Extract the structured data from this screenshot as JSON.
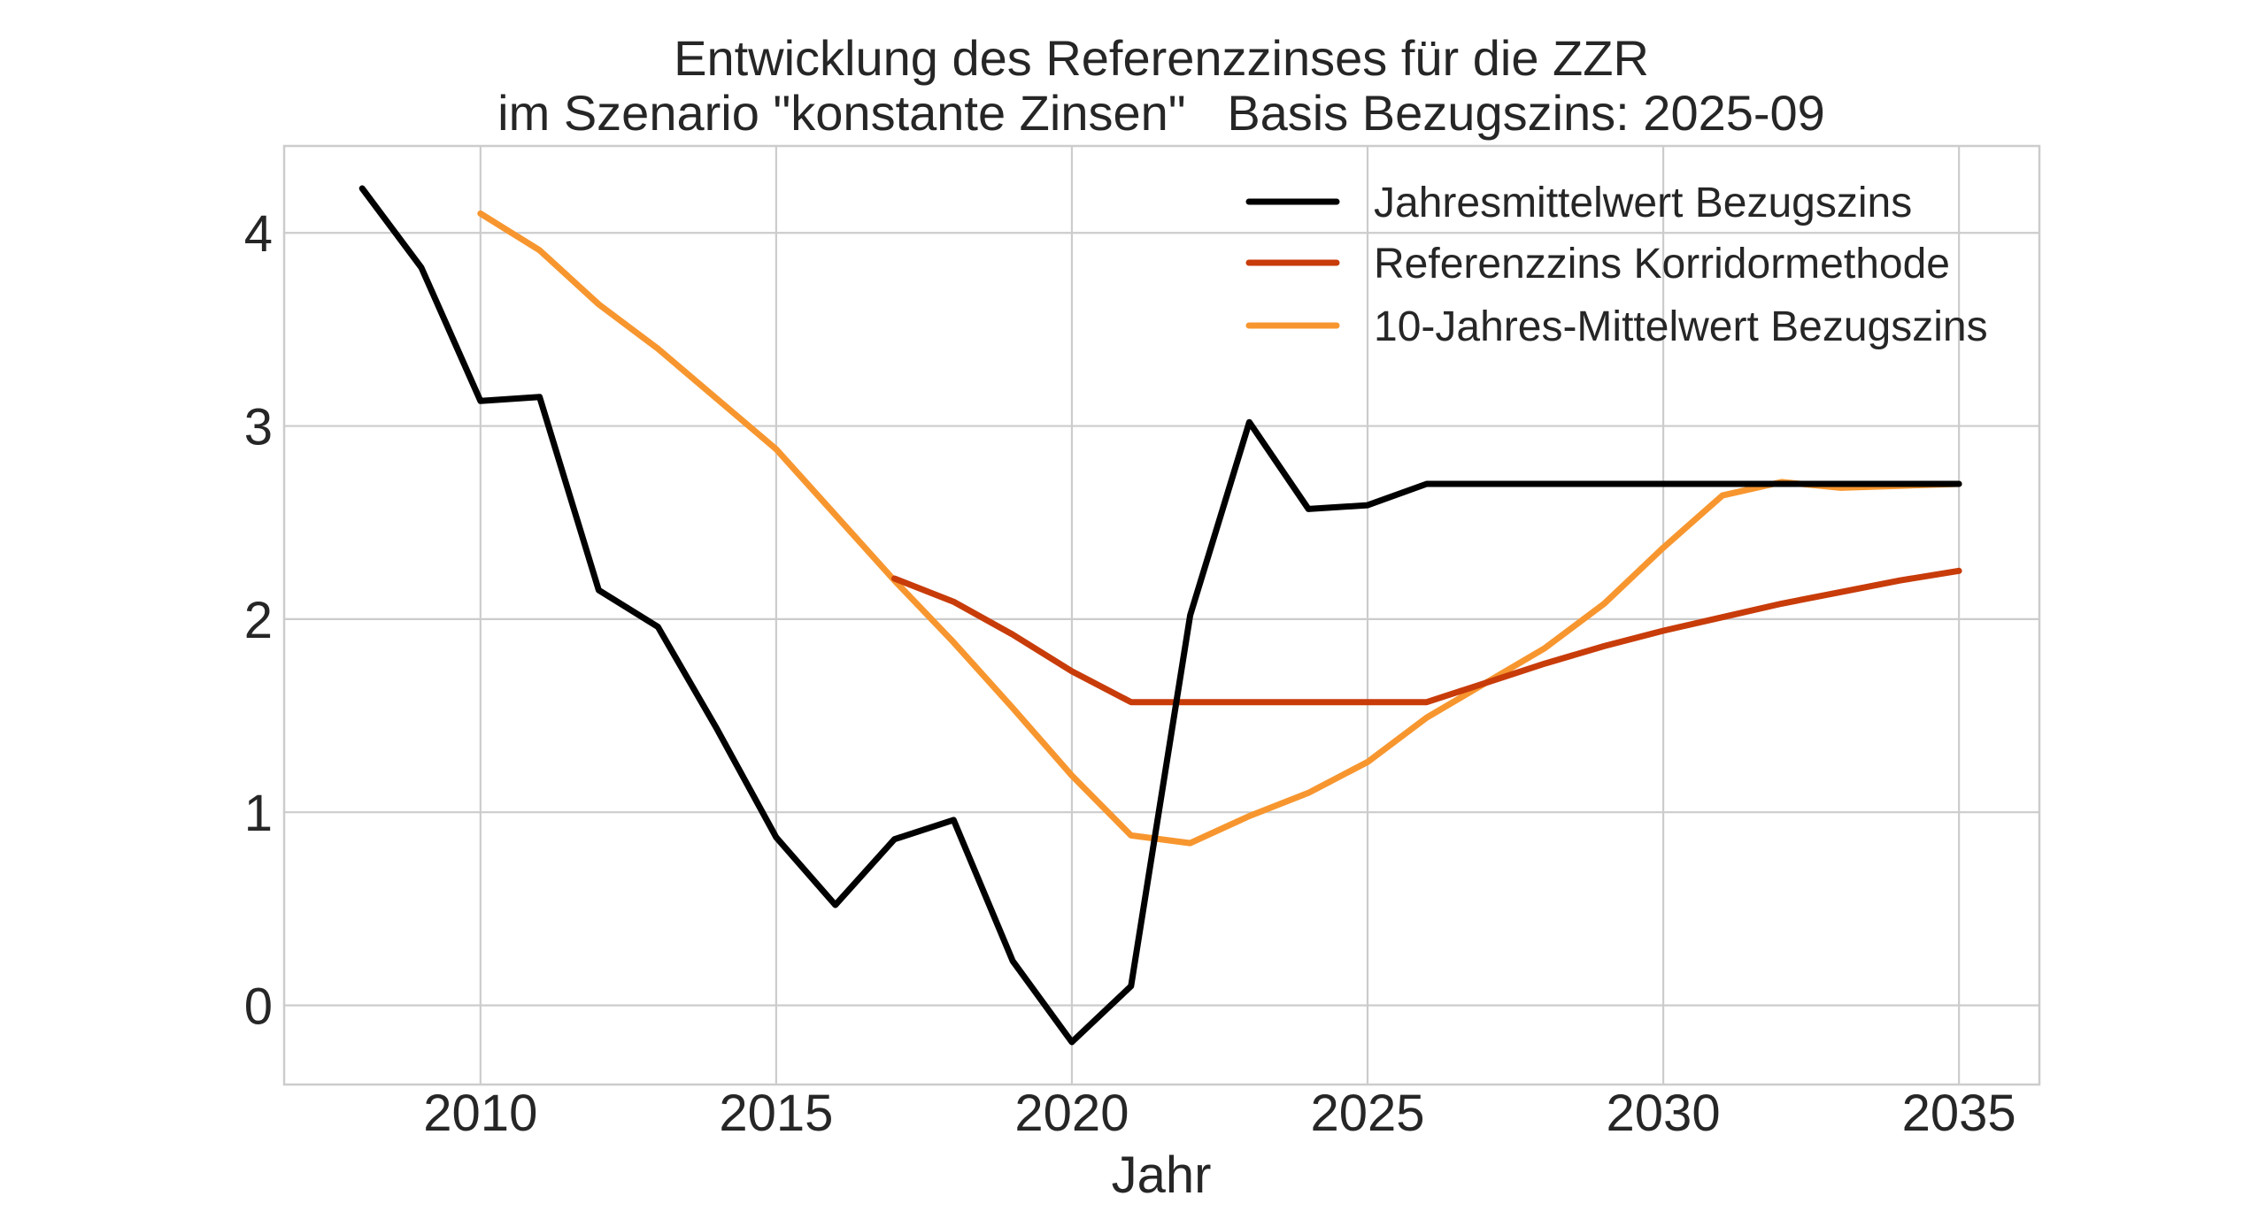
{
  "chart_data": {
    "type": "line",
    "title": [
      "Entwicklung des Referenzzinses für die ZZR",
      "im Szenario \"konstante Zinsen\"   Basis Bezugszins: 2025-09"
    ],
    "xlabel": "Jahr",
    "ylabel": "",
    "xlim": [
      2006.68,
      2036.36
    ],
    "ylim": [
      -0.41,
      4.45
    ],
    "xticks": [
      2010,
      2015,
      2020,
      2025,
      2030,
      2035
    ],
    "xtick_labels": [
      "2010",
      "2015",
      "2020",
      "2025",
      "2030",
      "2035"
    ],
    "yticks": [
      0,
      1,
      2,
      3,
      4
    ],
    "ytick_labels": [
      "0",
      "1",
      "2",
      "3",
      "4"
    ],
    "grid": true,
    "legend_position": "top-right",
    "series": [
      {
        "name": "Jahresmittelwert Bezugszins",
        "color": "#000000",
        "x": [
          2008,
          2009,
          2010,
          2011,
          2012,
          2013,
          2014,
          2015,
          2016,
          2017,
          2018,
          2019,
          2020,
          2021,
          2022,
          2023,
          2024,
          2025,
          2026,
          2027,
          2028,
          2029,
          2030,
          2031,
          2032,
          2033,
          2034,
          2035
        ],
        "y": [
          4.23,
          3.82,
          3.13,
          3.15,
          2.15,
          1.96,
          1.43,
          0.87,
          0.52,
          0.86,
          0.96,
          0.23,
          -0.19,
          0.1,
          2.02,
          3.02,
          2.57,
          2.59,
          2.7,
          2.7,
          2.7,
          2.7,
          2.7,
          2.7,
          2.7,
          2.7,
          2.7,
          2.7
        ]
      },
      {
        "name": "Referenzzins Korridormethode",
        "color": "#c83c0a",
        "x": [
          2017,
          2018,
          2019,
          2020,
          2021,
          2022,
          2023,
          2024,
          2025,
          2026,
          2027,
          2028,
          2029,
          2030,
          2031,
          2032,
          2033,
          2034,
          2035
        ],
        "y": [
          2.21,
          2.09,
          1.92,
          1.73,
          1.57,
          1.57,
          1.57,
          1.57,
          1.57,
          1.57,
          1.67,
          1.77,
          1.86,
          1.94,
          2.01,
          2.08,
          2.14,
          2.2,
          2.25
        ]
      },
      {
        "name": "10-Jahres-Mittelwert Bezugszins",
        "color": "#f7962f",
        "x": [
          2010,
          2011,
          2012,
          2013,
          2014,
          2015,
          2016,
          2017,
          2018,
          2019,
          2020,
          2021,
          2022,
          2023,
          2024,
          2025,
          2026,
          2027,
          2028,
          2029,
          2030,
          2031,
          2032,
          2033,
          2034,
          2035
        ],
        "y": [
          4.1,
          3.91,
          3.63,
          3.4,
          3.14,
          2.88,
          2.54,
          2.2,
          1.88,
          1.54,
          1.19,
          0.88,
          0.84,
          0.98,
          1.1,
          1.26,
          1.49,
          1.67,
          1.85,
          2.08,
          2.37,
          2.64,
          2.71,
          2.68,
          2.69,
          2.7
        ]
      }
    ]
  }
}
